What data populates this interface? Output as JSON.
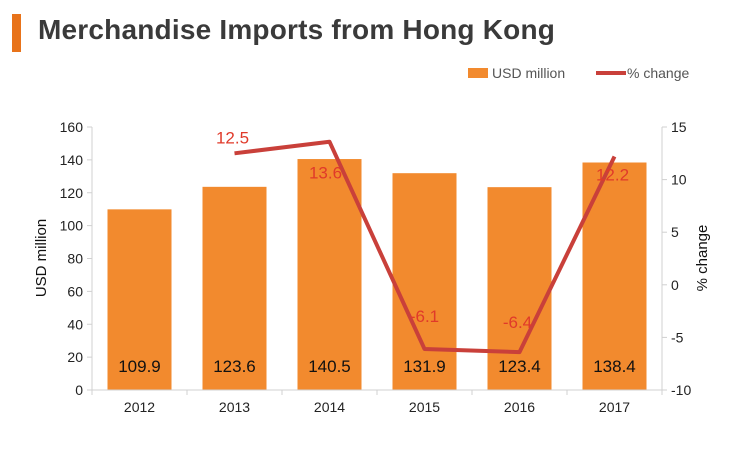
{
  "title": "Merchandise Imports from Hong Kong",
  "colors": {
    "accent": "#e8731a",
    "bar": "#f28a2e",
    "line": "#c9403a",
    "pct_label": "#e03a2a"
  },
  "chart_data": {
    "type": "bar",
    "categories": [
      "2012",
      "2013",
      "2014",
      "2015",
      "2016",
      "2017"
    ],
    "series": [
      {
        "name": "USD million",
        "type": "bar",
        "axis": "left",
        "values": [
          109.9,
          123.6,
          140.5,
          131.9,
          123.4,
          138.4
        ],
        "labels": [
          "109.9",
          "123.6",
          "140.5",
          "131.9",
          "123.4",
          "138.4"
        ]
      },
      {
        "name": "% change",
        "type": "line",
        "axis": "right",
        "values": [
          null,
          12.5,
          13.6,
          -6.1,
          -6.4,
          12.2
        ],
        "labels": [
          "",
          "12.5",
          "13.6",
          "-6.1",
          "-6.4",
          "12.2"
        ]
      }
    ],
    "ylabel": "USD million",
    "y2label": "% change",
    "ylim": [
      0,
      160
    ],
    "yticks": [
      "0",
      "20",
      "40",
      "60",
      "80",
      "100",
      "120",
      "140",
      "160"
    ],
    "y2lim": [
      -10,
      15
    ],
    "y2ticks": [
      "-10",
      "-5",
      "0",
      "5",
      "10",
      "15"
    ],
    "legend": "top-right",
    "grid": false
  }
}
